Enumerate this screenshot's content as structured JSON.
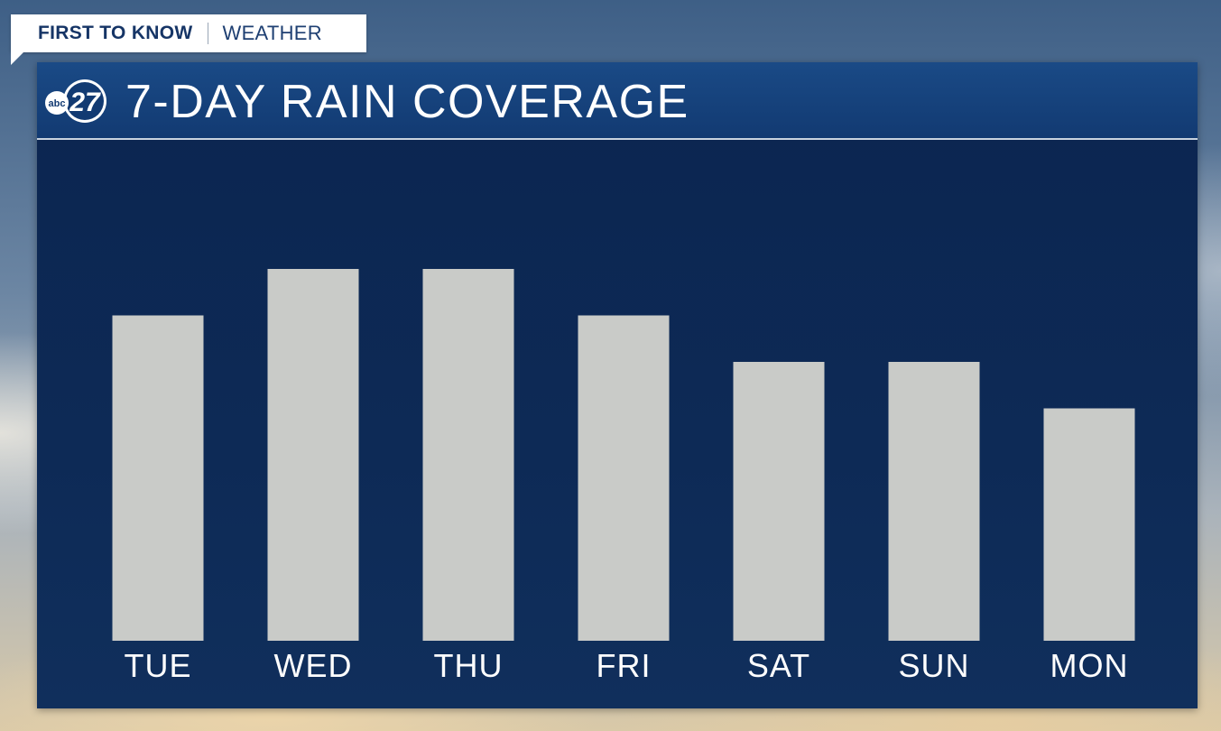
{
  "tag": {
    "brand": "FIRST TO KNOW",
    "section": "WEATHER"
  },
  "header": {
    "logo_text": "abc",
    "logo_number": "27",
    "title": "7-DAY RAIN COVERAGE"
  },
  "chart_data": {
    "type": "bar",
    "title": "7-DAY RAIN COVERAGE",
    "categories": [
      "TUE",
      "WED",
      "THU",
      "FRI",
      "SAT",
      "SUN",
      "MON"
    ],
    "values": [
      70,
      80,
      80,
      70,
      60,
      60,
      50
    ],
    "ylim": [
      0,
      100
    ],
    "xlabel": "",
    "ylabel": "",
    "grid": false,
    "bar_color": "#c9cbc8"
  },
  "colors": {
    "panel": "#0d2a56",
    "header": "#1a4a86",
    "bar": "#c9cbc8",
    "text": "#ffffff"
  }
}
